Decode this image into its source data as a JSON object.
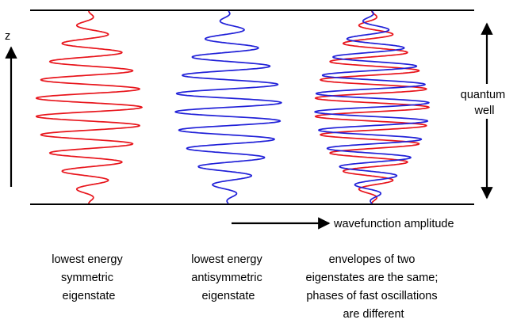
{
  "axis": {
    "z_label": "z",
    "amplitude_label": "wavefunction amplitude",
    "well_label_lines": [
      "quantum",
      "well"
    ]
  },
  "captions": [
    {
      "lines": [
        "lowest energy",
        "symmetric",
        "eigenstate"
      ]
    },
    {
      "lines": [
        "lowest energy",
        "antisymmetric",
        "eigenstate"
      ]
    },
    {
      "lines": [
        "envelopes of two",
        "eigenstates are the same;",
        "phases of fast oscillations",
        "are different"
      ]
    }
  ],
  "colors": {
    "symmetric": "#e8141b",
    "antisymmetric": "#2020d8",
    "lines": "#000000"
  },
  "curves": {
    "oscillation_cycles": 10.5,
    "max_half_width_fraction": 1.0,
    "panels": [
      {
        "traces": [
          "symmetric"
        ]
      },
      {
        "traces": [
          "antisymmetric"
        ]
      },
      {
        "traces": [
          "symmetric",
          "antisymmetric"
        ]
      }
    ]
  }
}
